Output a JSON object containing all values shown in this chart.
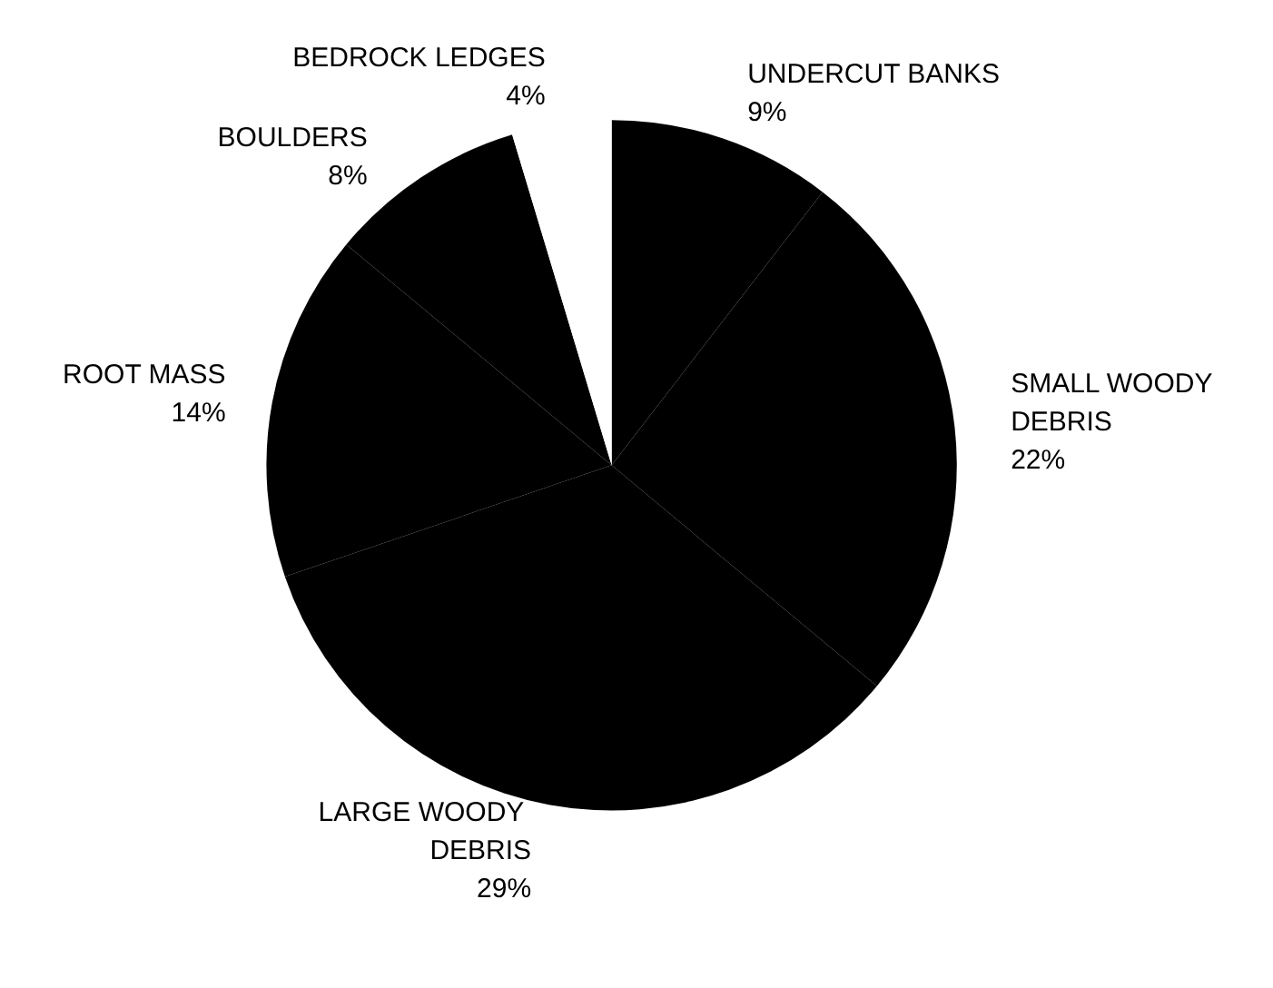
{
  "chart_data": {
    "type": "pie",
    "categories": [
      "UNDERCUT BANKS",
      "SMALL WOODY DEBRIS",
      "LARGE WOODY DEBRIS",
      "ROOT MASS",
      "BOULDERS",
      "BEDROCK LEDGES"
    ],
    "values": [
      9,
      22,
      29,
      14,
      8,
      4
    ],
    "colors": [
      "#000000",
      "#000000",
      "#000000",
      "#000000",
      "#000000",
      "#ffffff"
    ],
    "value_labels": [
      "9%",
      "22%",
      "29%",
      "14%",
      "8%",
      "4%"
    ],
    "legend": false
  }
}
